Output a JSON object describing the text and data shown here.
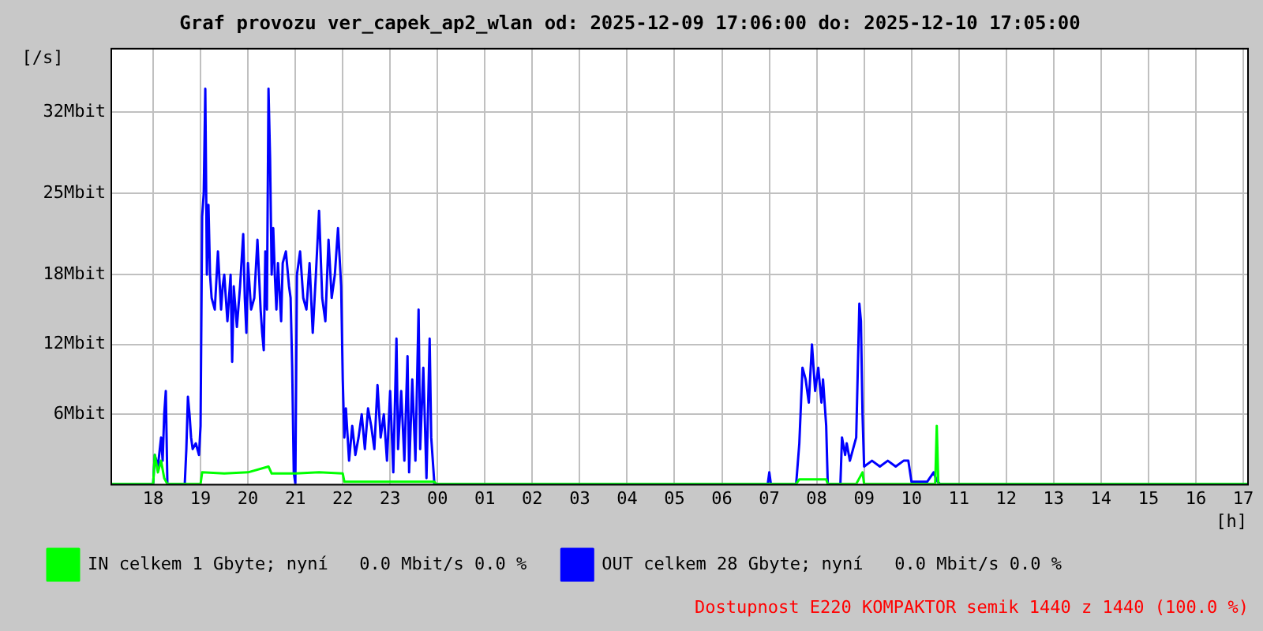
{
  "chart_data": {
    "type": "line",
    "title": "Graf provozu ver_capek_ap2_wlan od: 2025-12-09 17:06:00 do: 2025-12-10 17:05:00",
    "xlabel": "[h]",
    "ylabel": "[/s]",
    "annotations": [
      "Dostupnost E220 KOMPAKTOR semik 1440 z 1440 (100.0 %)"
    ],
    "xlim": [
      "2025-12-09T17:06",
      "2025-12-10T17:05"
    ],
    "ylim": [
      0,
      37.5
    ],
    "xticks": [
      {
        "value": "2025-12-09T18:00",
        "label": "18"
      },
      {
        "value": "2025-12-09T19:00",
        "label": "19"
      },
      {
        "value": "2025-12-09T20:00",
        "label": "20"
      },
      {
        "value": "2025-12-09T21:00",
        "label": "21"
      },
      {
        "value": "2025-12-09T22:00",
        "label": "22"
      },
      {
        "value": "2025-12-09T23:00",
        "label": "23"
      },
      {
        "value": "2025-12-10T00:00",
        "label": "00"
      },
      {
        "value": "2025-12-10T01:00",
        "label": "01"
      },
      {
        "value": "2025-12-10T02:00",
        "label": "02"
      },
      {
        "value": "2025-12-10T03:00",
        "label": "03"
      },
      {
        "value": "2025-12-10T04:00",
        "label": "04"
      },
      {
        "value": "2025-12-10T05:00",
        "label": "05"
      },
      {
        "value": "2025-12-10T06:00",
        "label": "06"
      },
      {
        "value": "2025-12-10T07:00",
        "label": "07"
      },
      {
        "value": "2025-12-10T08:00",
        "label": "08"
      },
      {
        "value": "2025-12-10T09:00",
        "label": "09"
      },
      {
        "value": "2025-12-10T10:00",
        "label": "10"
      },
      {
        "value": "2025-12-10T11:00",
        "label": "11"
      },
      {
        "value": "2025-12-10T12:00",
        "label": "12"
      },
      {
        "value": "2025-12-10T13:00",
        "label": "13"
      },
      {
        "value": "2025-12-10T14:00",
        "label": "14"
      },
      {
        "value": "2025-12-10T15:00",
        "label": "15"
      },
      {
        "value": "2025-12-10T16:00",
        "label": "16"
      },
      {
        "value": "2025-12-10T17:00",
        "label": "17"
      }
    ],
    "yticks": [
      {
        "value": 6,
        "label": "6Mbit"
      },
      {
        "value": 12,
        "label": "12Mbit"
      },
      {
        "value": 18,
        "label": "18Mbit"
      },
      {
        "value": 25,
        "label": "25Mbit"
      },
      {
        "value": 32,
        "label": "32Mbit"
      }
    ],
    "grid": true,
    "legend": "bottom",
    "marker": "none",
    "line_style": "solid",
    "series": [
      {
        "name": "IN celkem 1 Gbyte; nyní   0.0 Mbit/s 0.0 %",
        "color": "#00ff00",
        "x": [
          "2025-12-09T17:06",
          "2025-12-09T18:00",
          "2025-12-09T18:02",
          "2025-12-09T18:06",
          "2025-12-09T18:10",
          "2025-12-09T18:14",
          "2025-12-09T18:18",
          "2025-12-09T19:00",
          "2025-12-09T19:02",
          "2025-12-09T19:30",
          "2025-12-09T20:00",
          "2025-12-09T20:26",
          "2025-12-09T20:30",
          "2025-12-09T21:00",
          "2025-12-09T21:30",
          "2025-12-09T22:00",
          "2025-12-09T22:02",
          "2025-12-09T23:56",
          "2025-12-09T23:58",
          "2025-12-10T07:34",
          "2025-12-10T07:38",
          "2025-12-10T08:12",
          "2025-12-10T08:14",
          "2025-12-10T08:50",
          "2025-12-10T08:58",
          "2025-12-10T09:00",
          "2025-12-10T10:30",
          "2025-12-10T10:32",
          "2025-12-10T10:34",
          "2025-12-10T17:05"
        ],
        "values": [
          0,
          0,
          2.5,
          1,
          2,
          0.5,
          0,
          0,
          1,
          0.9,
          1,
          1.5,
          0.9,
          0.9,
          1,
          0.9,
          0.2,
          0.2,
          0,
          0,
          0.4,
          0.4,
          0,
          0,
          1,
          0,
          0,
          5,
          0,
          0
        ]
      },
      {
        "name": "OUT celkem 28 Gbyte; nyní   0.0 Mbit/s 0.0 %",
        "color": "#0000ff",
        "x": [
          "2025-12-09T17:06",
          "2025-12-09T18:00",
          "2025-12-09T18:02",
          "2025-12-09T18:06",
          "2025-12-09T18:10",
          "2025-12-09T18:12",
          "2025-12-09T18:14",
          "2025-12-09T18:16",
          "2025-12-09T18:18",
          "2025-12-09T18:40",
          "2025-12-09T18:42",
          "2025-12-09T18:44",
          "2025-12-09T18:46",
          "2025-12-09T18:48",
          "2025-12-09T18:50",
          "2025-12-09T18:54",
          "2025-12-09T18:58",
          "2025-12-09T19:00",
          "2025-12-09T19:02",
          "2025-12-09T19:04",
          "2025-12-09T19:06",
          "2025-12-09T19:08",
          "2025-12-09T19:10",
          "2025-12-09T19:12",
          "2025-12-09T19:14",
          "2025-12-09T19:18",
          "2025-12-09T19:22",
          "2025-12-09T19:26",
          "2025-12-09T19:28",
          "2025-12-09T19:30",
          "2025-12-09T19:34",
          "2025-12-09T19:38",
          "2025-12-09T19:40",
          "2025-12-09T19:42",
          "2025-12-09T19:46",
          "2025-12-09T19:50",
          "2025-12-09T19:54",
          "2025-12-09T19:56",
          "2025-12-09T19:58",
          "2025-12-09T20:00",
          "2025-12-09T20:04",
          "2025-12-09T20:08",
          "2025-12-09T20:12",
          "2025-12-09T20:14",
          "2025-12-09T20:16",
          "2025-12-09T20:18",
          "2025-12-09T20:20",
          "2025-12-09T20:22",
          "2025-12-09T20:24",
          "2025-12-09T20:26",
          "2025-12-09T20:28",
          "2025-12-09T20:30",
          "2025-12-09T20:32",
          "2025-12-09T20:34",
          "2025-12-09T20:36",
          "2025-12-09T20:38",
          "2025-12-09T20:42",
          "2025-12-09T20:44",
          "2025-12-09T20:48",
          "2025-12-09T20:52",
          "2025-12-09T20:54",
          "2025-12-09T20:56",
          "2025-12-09T20:58",
          "2025-12-09T21:00",
          "2025-12-09T21:02",
          "2025-12-09T21:06",
          "2025-12-09T21:10",
          "2025-12-09T21:14",
          "2025-12-09T21:18",
          "2025-12-09T21:22",
          "2025-12-09T21:26",
          "2025-12-09T21:30",
          "2025-12-09T21:34",
          "2025-12-09T21:38",
          "2025-12-09T21:42",
          "2025-12-09T21:46",
          "2025-12-09T21:50",
          "2025-12-09T21:54",
          "2025-12-09T21:58",
          "2025-12-09T22:00",
          "2025-12-09T22:02",
          "2025-12-09T22:04",
          "2025-12-09T22:08",
          "2025-12-09T22:12",
          "2025-12-09T22:16",
          "2025-12-09T22:20",
          "2025-12-09T22:24",
          "2025-12-09T22:28",
          "2025-12-09T22:32",
          "2025-12-09T22:36",
          "2025-12-09T22:40",
          "2025-12-09T22:44",
          "2025-12-09T22:48",
          "2025-12-09T22:52",
          "2025-12-09T22:56",
          "2025-12-09T23:00",
          "2025-12-09T23:04",
          "2025-12-09T23:08",
          "2025-12-09T23:10",
          "2025-12-09T23:14",
          "2025-12-09T23:18",
          "2025-12-09T23:22",
          "2025-12-09T23:24",
          "2025-12-09T23:28",
          "2025-12-09T23:32",
          "2025-12-09T23:36",
          "2025-12-09T23:38",
          "2025-12-09T23:42",
          "2025-12-09T23:46",
          "2025-12-09T23:50",
          "2025-12-09T23:52",
          "2025-12-09T23:56",
          "2025-12-10T06:58",
          "2025-12-10T07:00",
          "2025-12-10T07:02",
          "2025-12-10T07:34",
          "2025-12-10T07:38",
          "2025-12-10T07:42",
          "2025-12-10T07:46",
          "2025-12-10T07:50",
          "2025-12-10T07:54",
          "2025-12-10T07:58",
          "2025-12-10T08:02",
          "2025-12-10T08:06",
          "2025-12-10T08:08",
          "2025-12-10T08:12",
          "2025-12-10T08:14",
          "2025-12-10T08:30",
          "2025-12-10T08:32",
          "2025-12-10T08:36",
          "2025-12-10T08:38",
          "2025-12-10T08:42",
          "2025-12-10T08:46",
          "2025-12-10T08:50",
          "2025-12-10T08:54",
          "2025-12-10T08:56",
          "2025-12-10T08:58",
          "2025-12-10T09:00",
          "2025-12-10T09:10",
          "2025-12-10T09:20",
          "2025-12-10T09:30",
          "2025-12-10T09:40",
          "2025-12-10T09:50",
          "2025-12-10T09:56",
          "2025-12-10T10:00",
          "2025-12-10T10:20",
          "2025-12-10T10:28",
          "2025-12-10T10:32",
          "2025-12-10T10:36",
          "2025-12-10T17:05"
        ],
        "values": [
          0,
          0,
          2.5,
          1.5,
          4,
          2,
          6,
          8,
          0,
          0,
          3,
          7.5,
          6,
          4,
          3,
          3.5,
          2.5,
          5,
          23,
          25,
          34,
          18,
          24,
          18,
          16,
          15,
          20,
          15,
          17,
          18,
          14,
          18,
          10.5,
          17,
          13.5,
          17,
          21.5,
          16,
          13,
          19,
          15,
          16,
          21,
          18,
          15,
          13,
          11.5,
          20,
          15,
          34,
          28,
          18,
          22,
          18,
          15,
          19,
          14,
          19,
          20,
          17,
          16,
          10,
          1,
          0,
          18,
          20,
          16,
          15,
          19,
          13,
          18,
          23.5,
          16,
          14,
          21,
          16,
          18,
          22,
          17,
          9,
          4,
          6.5,
          2,
          5,
          2.5,
          4,
          6,
          3,
          6.5,
          5,
          3,
          8.5,
          4,
          6,
          2,
          8,
          1,
          12.5,
          3,
          8,
          2,
          11,
          1,
          9,
          2,
          15,
          3,
          10,
          0.5,
          12.5,
          4,
          0,
          0,
          1,
          0,
          0,
          3.5,
          10,
          9,
          7,
          12,
          8,
          10,
          7,
          9,
          5,
          0,
          0,
          4,
          2.5,
          3.5,
          2,
          3,
          4,
          15.5,
          14,
          6,
          1.5,
          2,
          1.5,
          2,
          1.5,
          2,
          2,
          0.2,
          0.2,
          1,
          0.3,
          0,
          0
        ]
      }
    ]
  }
}
